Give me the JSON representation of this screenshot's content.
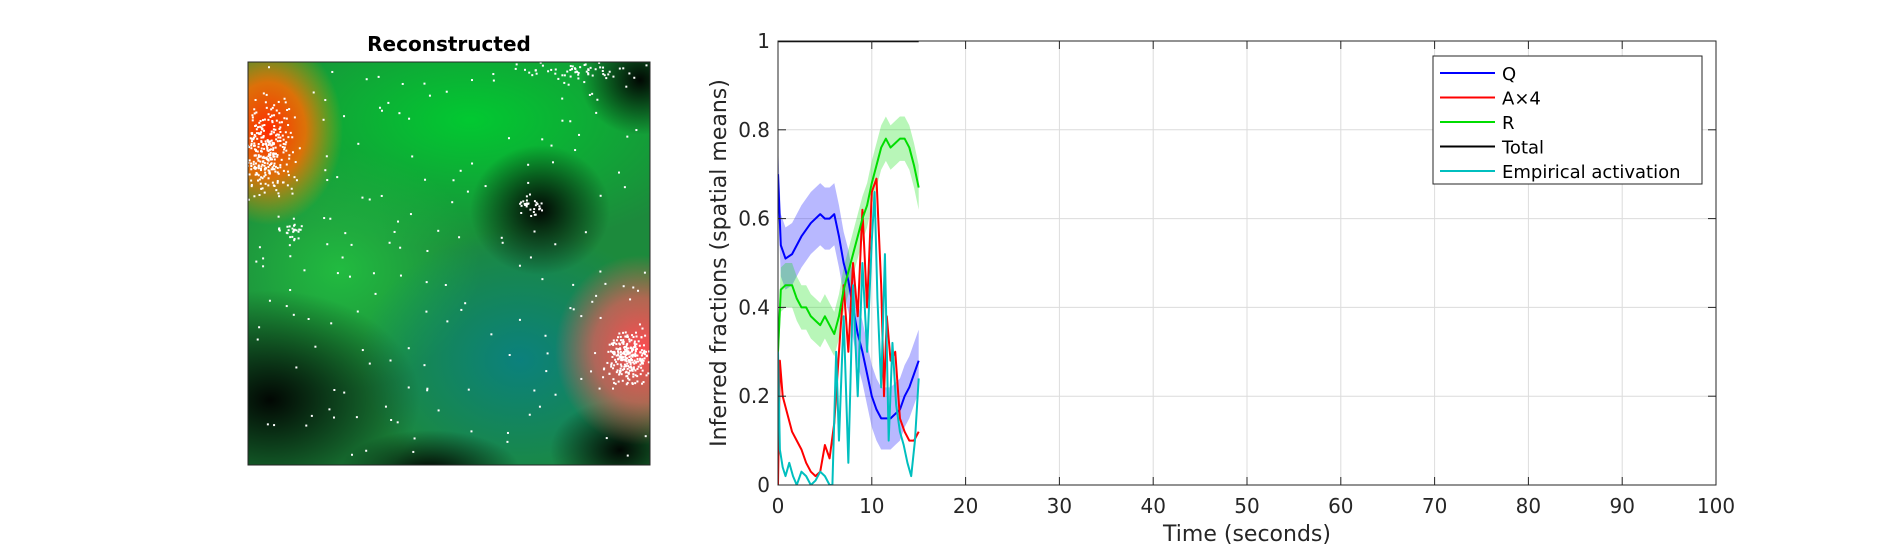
{
  "colors": {
    "Q": "#0000ff",
    "A": "#ff0000",
    "R": "#00dd00",
    "Total": "#000000",
    "Empirical activation": "#00bfbf"
  },
  "chart_data": [
    {
      "type": "heatmap",
      "title": "Reconstructed",
      "description_colors": [
        "black",
        "green",
        "teal",
        "orange-red"
      ],
      "overlay": "white-dots",
      "axes_ticks": false
    },
    {
      "type": "line",
      "xlabel": "Time (seconds)",
      "ylabel": "Inferred fractions (spatial means)",
      "xlim": [
        0,
        100
      ],
      "ylim": [
        0,
        1
      ],
      "xticks": [
        0,
        10,
        20,
        30,
        40,
        50,
        60,
        70,
        80,
        90,
        100
      ],
      "yticks": [
        0,
        0.2,
        0.4,
        0.6,
        0.8,
        1
      ],
      "ytick_labels": [
        "0",
        "0.2",
        "0.4",
        "0.6",
        "0.8",
        "1"
      ],
      "grid": true,
      "legend_position": "top-right",
      "series": [
        {
          "name": "Q",
          "color": "#0000ff",
          "x": [
            0,
            0.3,
            0.8,
            1.5,
            2.5,
            3.5,
            4.5,
            5.0,
            5.5,
            6.0,
            6.5,
            7.0,
            7.5,
            8.0,
            8.5,
            9.0,
            9.5,
            10.0,
            10.5,
            11.0,
            11.5,
            12.0,
            12.5,
            13.0,
            13.5,
            14.0,
            14.5,
            15.0
          ],
          "y": [
            0.7,
            0.54,
            0.51,
            0.52,
            0.56,
            0.59,
            0.61,
            0.6,
            0.6,
            0.61,
            0.56,
            0.5,
            0.46,
            0.4,
            0.34,
            0.3,
            0.25,
            0.2,
            0.17,
            0.15,
            0.15,
            0.15,
            0.16,
            0.17,
            0.2,
            0.22,
            0.25,
            0.28
          ],
          "band_half_width": 0.07
        },
        {
          "name": "A×4",
          "color": "#ff0000",
          "x": [
            0,
            0.2,
            0.5,
            1.0,
            1.5,
            2.0,
            2.5,
            3.0,
            3.5,
            4.0,
            4.5,
            5.0,
            5.5,
            6.0,
            6.5,
            7.0,
            7.5,
            8.0,
            8.5,
            9.0,
            9.5,
            10.0,
            10.5,
            11.0,
            11.3,
            11.6,
            12.0,
            12.5,
            13.0,
            13.5,
            14.0,
            14.5,
            15.0
          ],
          "y": [
            0.0,
            0.28,
            0.2,
            0.16,
            0.12,
            0.1,
            0.08,
            0.05,
            0.03,
            0.02,
            0.03,
            0.09,
            0.06,
            0.14,
            0.3,
            0.45,
            0.3,
            0.5,
            0.38,
            0.62,
            0.4,
            0.66,
            0.69,
            0.45,
            0.2,
            0.38,
            0.28,
            0.3,
            0.15,
            0.12,
            0.1,
            0.1,
            0.12
          ]
        },
        {
          "name": "R",
          "color": "#00dd00",
          "x": [
            0,
            0.3,
            0.8,
            1.5,
            2.0,
            2.5,
            3.0,
            3.5,
            4.0,
            4.5,
            5.0,
            5.5,
            6.0,
            6.5,
            7.0,
            7.5,
            8.0,
            8.5,
            9.0,
            9.5,
            10.0,
            10.5,
            11.0,
            11.5,
            12.0,
            12.5,
            13.0,
            13.5,
            14.0,
            14.5,
            15.0
          ],
          "y": [
            0.3,
            0.44,
            0.45,
            0.45,
            0.42,
            0.4,
            0.4,
            0.38,
            0.37,
            0.36,
            0.38,
            0.36,
            0.34,
            0.38,
            0.44,
            0.48,
            0.52,
            0.56,
            0.6,
            0.63,
            0.68,
            0.72,
            0.76,
            0.78,
            0.76,
            0.77,
            0.78,
            0.78,
            0.76,
            0.72,
            0.67
          ],
          "band_half_width": 0.05
        },
        {
          "name": "Total",
          "color": "#000000",
          "x": [
            0,
            15
          ],
          "y": [
            1,
            1
          ]
        },
        {
          "name": "Empirical activation",
          "color": "#00bfbf",
          "x": [
            0,
            0.2,
            0.5,
            0.8,
            1.2,
            1.6,
            2.0,
            2.5,
            3.0,
            3.5,
            4.0,
            4.5,
            5.0,
            5.5,
            5.8,
            6.2,
            6.5,
            7.0,
            7.5,
            8.0,
            8.5,
            9.0,
            9.5,
            10.0,
            10.3,
            10.6,
            11.0,
            11.4,
            11.8,
            12.2,
            12.6,
            13.0,
            13.4,
            13.8,
            14.2,
            14.6,
            15.0
          ],
          "y": [
            0.3,
            0.08,
            0.04,
            0.02,
            0.05,
            0.02,
            0.0,
            0.03,
            0.02,
            0.0,
            0.01,
            0.03,
            0.02,
            0.0,
            0.0,
            0.3,
            0.1,
            0.38,
            0.05,
            0.45,
            0.2,
            0.5,
            0.3,
            0.55,
            0.66,
            0.42,
            0.22,
            0.52,
            0.1,
            0.32,
            0.18,
            0.12,
            0.09,
            0.05,
            0.02,
            0.1,
            0.24
          ]
        }
      ]
    }
  ]
}
